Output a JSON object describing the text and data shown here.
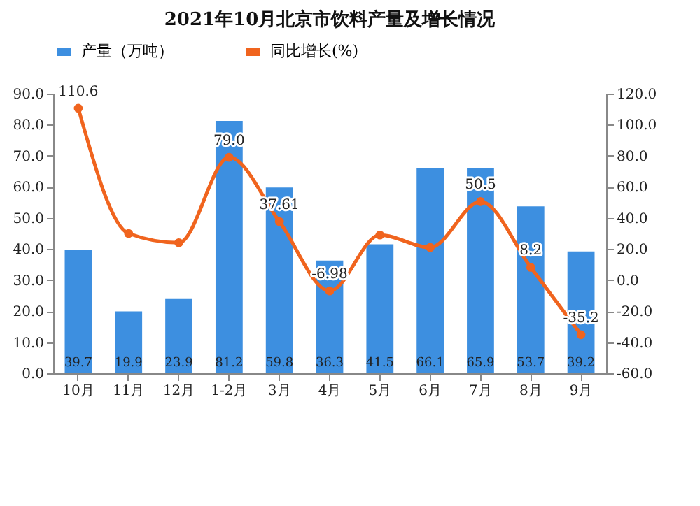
{
  "chart_data": {
    "type": "bar",
    "title": "2021年10月北京市饮料产量及增长情况",
    "categories": [
      "10月",
      "11月",
      "12月",
      "1-2月",
      "3月",
      "4月",
      "5月",
      "6月",
      "7月",
      "8月",
      "9月"
    ],
    "series": [
      {
        "name": "产量（万吨）",
        "color": "#3d8fe0",
        "values": [
          39.7,
          19.9,
          23.9,
          81.2,
          59.8,
          36.3,
          41.5,
          66.1,
          65.9,
          53.7,
          39.2
        ],
        "value_labels": [
          "39.7",
          "19.9",
          "23.9",
          "81.2",
          "59.8",
          "36.3",
          "41.5",
          "66.1",
          "65.9",
          "53.7",
          "39.2"
        ]
      },
      {
        "name": "同比增长(%)",
        "type": "line",
        "axis": "y2",
        "color": "#f0641e",
        "values": [
          110.6,
          30,
          24,
          79.0,
          37.61,
          -6.98,
          29,
          21,
          50.5,
          8.2,
          -35.2
        ],
        "value_labels": [
          "110.6",
          null,
          null,
          "79.0",
          "37.61",
          "-6.98",
          null,
          null,
          "50.5",
          "8.2",
          "-35.2"
        ]
      }
    ],
    "ylim": [
      0,
      90
    ],
    "yticks": [
      {
        "value": 0,
        "label": "0.0"
      },
      {
        "value": 10,
        "label": "10.0"
      },
      {
        "value": 20,
        "label": "20.0"
      },
      {
        "value": 30,
        "label": "30.0"
      },
      {
        "value": 40,
        "label": "40.0"
      },
      {
        "value": 50,
        "label": "50.0"
      },
      {
        "value": 60,
        "label": "60.0"
      },
      {
        "value": 70,
        "label": "70.0"
      },
      {
        "value": 80,
        "label": "80.0"
      },
      {
        "value": 90,
        "label": "90.0"
      }
    ],
    "y2lim": [
      -60,
      120
    ],
    "y2ticks": [
      {
        "value": -60,
        "label": "-60.0"
      },
      {
        "value": -40,
        "label": "-40.0"
      },
      {
        "value": -20,
        "label": "-20.0"
      },
      {
        "value": 0,
        "label": "0.0"
      },
      {
        "value": 20,
        "label": "20.0"
      },
      {
        "value": 40,
        "label": "40.0"
      },
      {
        "value": 60,
        "label": "60.0"
      },
      {
        "value": 80,
        "label": "80.0"
      },
      {
        "value": 100,
        "label": "100.0"
      },
      {
        "value": 120,
        "label": "120.0"
      }
    ],
    "legend": "top",
    "marker": "circle",
    "grid": false
  }
}
